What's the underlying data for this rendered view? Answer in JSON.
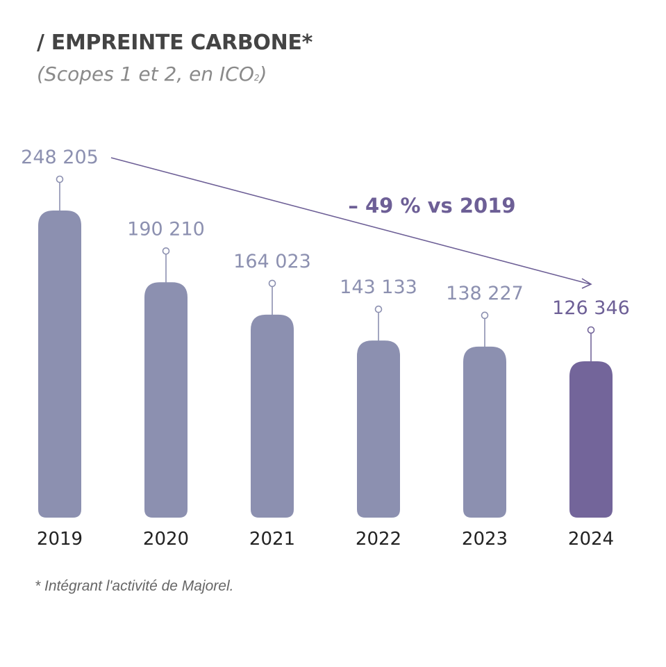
{
  "chart_data": {
    "type": "bar",
    "title": "/ EMPREINTE CARBONE*",
    "subtitle_main": "(Scopes 1 et 2, en ICO",
    "subtitle_sub": "2",
    "subtitle_end": ")",
    "categories": [
      "2019",
      "2020",
      "2021",
      "2022",
      "2023",
      "2024"
    ],
    "values": [
      248205,
      190210,
      164023,
      143133,
      138227,
      126346
    ],
    "value_labels": [
      "248 205",
      "190 210",
      "164 023",
      "143 133",
      "138 227",
      "126 346"
    ],
    "annotation": "– 49 % vs 2019",
    "footnote": "* Intégrant l'activité de Majorel.",
    "ylim": [
      0,
      248205
    ],
    "grid": false,
    "colors": {
      "bar": "#8c90b0",
      "highlight_bar": "#73659a",
      "label": "#8c90b0",
      "highlight_label": "#6d5f96",
      "arrow": "#6d5f96",
      "axis_text": "#222222"
    }
  }
}
